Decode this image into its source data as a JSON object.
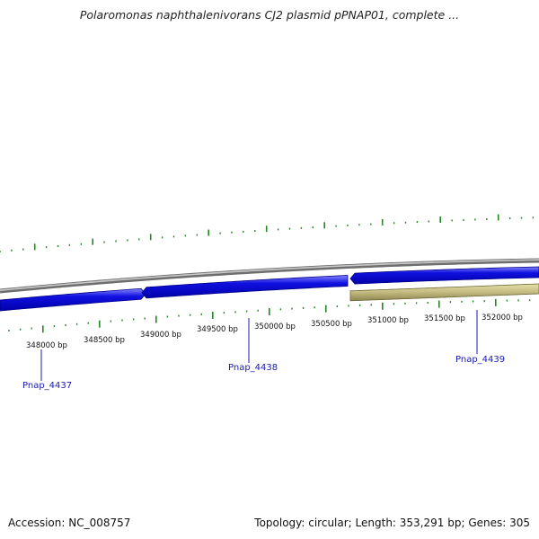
{
  "title": "Polaromonas naphthalenivorans CJ2 plasmid pPNAP01, complete ...",
  "accession_label": "Accession: NC_008757",
  "summary_label": "Topology: circular; Length: 353,291 bp; Genes: 305",
  "colors": {
    "tick": "#228822",
    "backbone": "#8a8a8a",
    "gene_forward": "#1010e0",
    "gene_reverse": "#b8b070",
    "label": "#1a1ab0"
  },
  "bp_axis": {
    "labels": [
      "348000 bp",
      "348500 bp",
      "349000 bp",
      "349500 bp",
      "350000 bp",
      "350500 bp",
      "351000 bp",
      "351500 bp",
      "352000 bp"
    ]
  },
  "genes": [
    {
      "name": "Pnap_4437",
      "strand": "forward"
    },
    {
      "name": "Pnap_4438",
      "strand": "forward"
    },
    {
      "name": "Pnap_4439",
      "strand": "forward"
    },
    {
      "name": "",
      "strand": "reverse"
    }
  ]
}
